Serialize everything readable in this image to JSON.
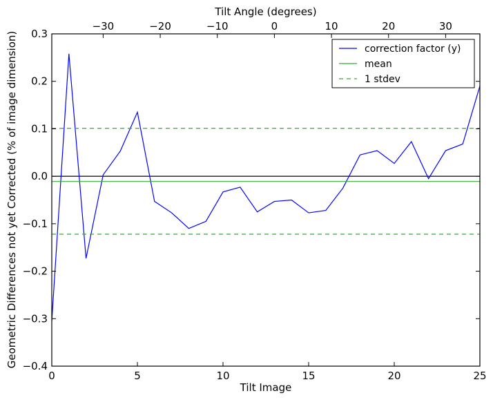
{
  "chart_data": {
    "type": "line",
    "xlabel": "Tilt Image",
    "ylabel": "Geometric Differences not yet Corrected (% of image dimension)",
    "top_xlabel": "Tilt Angle (degrees)",
    "xlim": [
      0,
      25
    ],
    "ylim": [
      -0.4,
      0.3
    ],
    "top_xlim": [
      -39,
      36
    ],
    "x_ticks": [
      0,
      5,
      10,
      15,
      20,
      25
    ],
    "y_ticks": [
      -0.4,
      -0.3,
      -0.2,
      -0.1,
      0.0,
      0.1,
      0.2,
      0.3
    ],
    "x_tick_labels": [
      "0",
      "5",
      "10",
      "15",
      "20",
      "25"
    ],
    "y_tick_labels": [
      "−0.4",
      "−0.3",
      "−0.2",
      "−0.1",
      "0.0",
      "0.1",
      "0.2",
      "0.3"
    ],
    "top_ticks": [
      -30,
      -20,
      -10,
      0,
      10,
      20,
      30
    ],
    "top_tick_labels": [
      "−30",
      "−20",
      "−10",
      "0",
      "10",
      "20",
      "30"
    ],
    "zero_line": 0.0,
    "legend_placement": "top-right",
    "series": [
      {
        "name": "correction factor (y)",
        "style": "solid",
        "color": "#0000ff",
        "x": [
          0,
          1,
          2,
          3,
          4,
          5,
          6,
          7,
          8,
          9,
          10,
          11,
          12,
          13,
          14,
          15,
          16,
          17,
          18,
          19,
          20,
          21,
          22,
          23,
          24,
          25
        ],
        "values": [
          -0.305,
          0.258,
          -0.173,
          0.003,
          0.053,
          0.135,
          -0.053,
          -0.077,
          -0.11,
          -0.095,
          -0.033,
          -0.023,
          -0.075,
          -0.053,
          -0.05,
          -0.077,
          -0.072,
          -0.025,
          0.045,
          0.054,
          0.027,
          0.073,
          -0.005,
          0.054,
          0.068,
          0.19
        ]
      },
      {
        "name": "mean",
        "style": "solid",
        "color": "#33aa33",
        "value": -0.011
      },
      {
        "name": "1 stdev",
        "style": "dashed",
        "color": "#33aa33",
        "values": [
          0.101,
          -0.122
        ]
      }
    ]
  }
}
